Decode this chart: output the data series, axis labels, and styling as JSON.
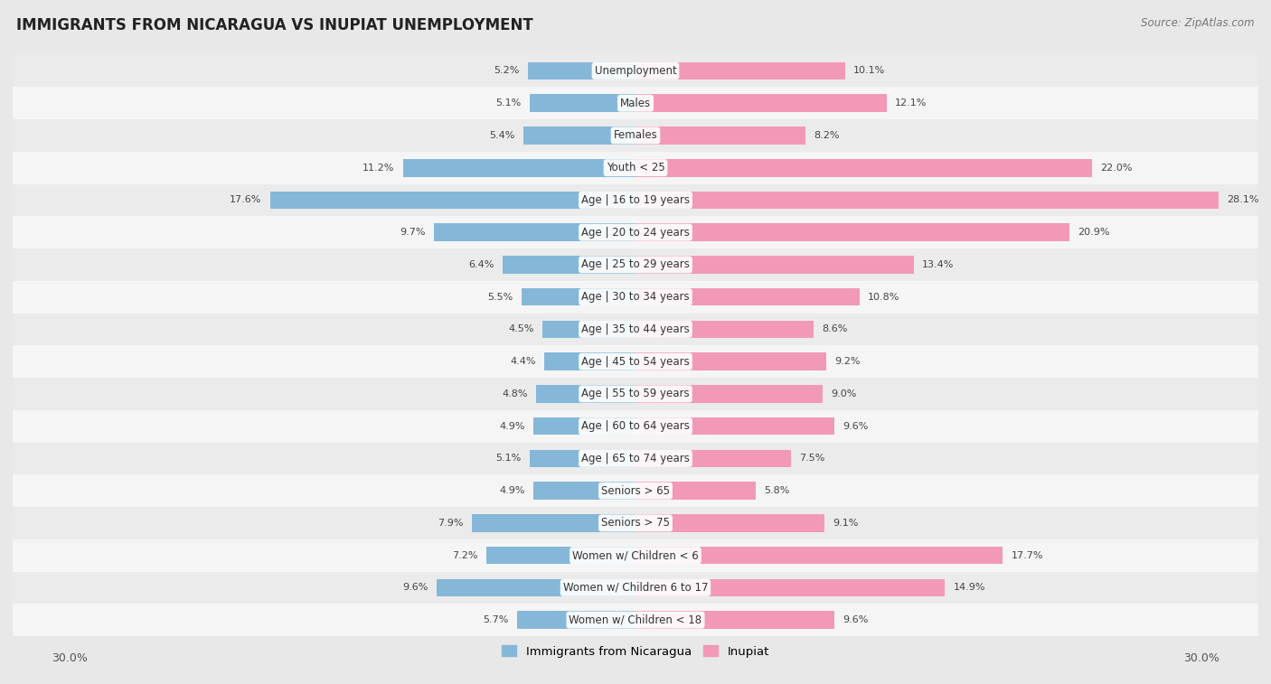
{
  "title": "IMMIGRANTS FROM NICARAGUA VS INUPIAT UNEMPLOYMENT",
  "source": "Source: ZipAtlas.com",
  "categories": [
    "Unemployment",
    "Males",
    "Females",
    "Youth < 25",
    "Age | 16 to 19 years",
    "Age | 20 to 24 years",
    "Age | 25 to 29 years",
    "Age | 30 to 34 years",
    "Age | 35 to 44 years",
    "Age | 45 to 54 years",
    "Age | 55 to 59 years",
    "Age | 60 to 64 years",
    "Age | 65 to 74 years",
    "Seniors > 65",
    "Seniors > 75",
    "Women w/ Children < 6",
    "Women w/ Children 6 to 17",
    "Women w/ Children < 18"
  ],
  "nicaragua_values": [
    5.2,
    5.1,
    5.4,
    11.2,
    17.6,
    9.7,
    6.4,
    5.5,
    4.5,
    4.4,
    4.8,
    4.9,
    5.1,
    4.9,
    7.9,
    7.2,
    9.6,
    5.7
  ],
  "inupiat_values": [
    10.1,
    12.1,
    8.2,
    22.0,
    28.1,
    20.9,
    13.4,
    10.8,
    8.6,
    9.2,
    9.0,
    9.6,
    7.5,
    5.8,
    9.1,
    17.7,
    14.9,
    9.6
  ],
  "nicaragua_color": "#85b8d8",
  "inupiat_color": "#f299b8",
  "background_color": "#e8e8e8",
  "row_color_odd": "#f5f5f5",
  "row_color_even": "#ebebeb",
  "xlim_left": -30.0,
  "xlim_right": 30.0,
  "legend_nicaragua": "Immigrants from Nicaragua",
  "legend_inupiat": "Inupiat"
}
